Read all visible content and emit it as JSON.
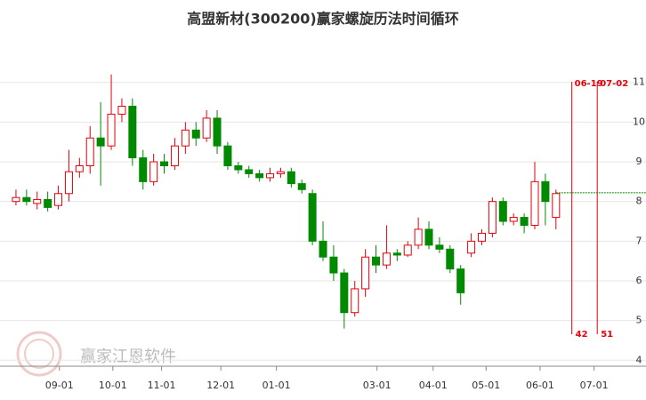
{
  "chart_data": {
    "type": "candlestick",
    "title": "高盟新材(300200)赢家螺旋历法时间循环",
    "watermark": "赢家江恩软件",
    "x": [
      0,
      2,
      4,
      6,
      8,
      10,
      12,
      14,
      16,
      18,
      20,
      22,
      24,
      26,
      28,
      30,
      32,
      34,
      36,
      38,
      40,
      42,
      44,
      46,
      48,
      50,
      52,
      54,
      56,
      58,
      60,
      62,
      64,
      66,
      68,
      70,
      72,
      74,
      76,
      78,
      80,
      82,
      84,
      86,
      88,
      90,
      92,
      94,
      96,
      98,
      100,
      102
    ],
    "open": [
      8.0,
      8.1,
      7.95,
      8.05,
      7.9,
      8.2,
      8.75,
      8.9,
      9.6,
      9.4,
      10.2,
      10.4,
      9.1,
      8.5,
      9.0,
      8.9,
      9.4,
      9.8,
      9.6,
      10.1,
      9.4,
      8.9,
      8.8,
      8.7,
      8.6,
      8.7,
      8.75,
      8.45,
      8.2,
      7.0,
      6.6,
      6.2,
      5.2,
      5.8,
      6.6,
      6.4,
      6.7,
      6.65,
      6.9,
      7.3,
      6.9,
      6.8,
      6.3,
      6.7,
      7.0,
      7.2,
      8.0,
      7.5,
      7.6,
      7.4,
      8.5,
      7.6
    ],
    "high": [
      8.3,
      8.3,
      8.25,
      8.25,
      8.4,
      9.3,
      9.1,
      9.9,
      10.5,
      11.2,
      10.6,
      10.6,
      9.3,
      9.2,
      9.2,
      9.6,
      10.0,
      10.0,
      10.3,
      10.3,
      9.5,
      9.0,
      8.9,
      8.8,
      8.85,
      8.85,
      8.85,
      8.55,
      8.3,
      7.5,
      6.9,
      6.3,
      6.0,
      6.8,
      6.9,
      7.4,
      6.8,
      7.0,
      7.6,
      7.5,
      7.1,
      6.9,
      6.4,
      7.2,
      7.3,
      8.1,
      8.1,
      7.7,
      7.7,
      9.0,
      8.7,
      8.3
    ],
    "low": [
      7.9,
      7.9,
      7.8,
      7.75,
      7.8,
      8.0,
      8.6,
      8.7,
      8.4,
      9.3,
      10.0,
      8.9,
      8.3,
      8.4,
      8.7,
      8.8,
      9.2,
      9.4,
      9.5,
      9.2,
      8.8,
      8.7,
      8.6,
      8.5,
      8.5,
      8.6,
      8.35,
      8.2,
      6.9,
      6.5,
      6.0,
      4.8,
      5.1,
      5.6,
      6.2,
      6.3,
      6.5,
      6.6,
      6.8,
      6.8,
      6.7,
      6.2,
      5.4,
      6.6,
      6.9,
      7.1,
      7.4,
      7.4,
      7.2,
      7.3,
      7.4,
      7.3
    ],
    "close": [
      8.1,
      8.0,
      8.05,
      7.85,
      8.2,
      8.75,
      8.9,
      9.6,
      9.4,
      10.2,
      10.4,
      9.1,
      8.5,
      9.0,
      8.9,
      9.4,
      9.8,
      9.6,
      10.1,
      9.4,
      8.9,
      8.8,
      8.7,
      8.6,
      8.7,
      8.75,
      8.45,
      8.3,
      7.0,
      6.6,
      6.2,
      5.2,
      5.8,
      6.6,
      6.4,
      6.7,
      6.65,
      6.9,
      7.3,
      6.9,
      6.8,
      6.3,
      5.7,
      7.0,
      7.2,
      8.0,
      7.5,
      7.6,
      7.4,
      8.5,
      8.0,
      8.2
    ],
    "up_color": "#e8000b",
    "down_color": "#008a00",
    "xlim": [
      -1,
      118
    ],
    "xticks": [
      {
        "value": 8.2,
        "label": "09-01"
      },
      {
        "value": 18.3,
        "label": "10-01"
      },
      {
        "value": 27.5,
        "label": "11-01"
      },
      {
        "value": 38.7,
        "label": "12-01"
      },
      {
        "value": 49.2,
        "label": "01-01"
      },
      {
        "value": 68.2,
        "label": "03-01"
      },
      {
        "value": 78.8,
        "label": "04-01"
      },
      {
        "value": 88.8,
        "label": "05-01"
      },
      {
        "value": 99,
        "label": "06-01"
      },
      {
        "value": 109.2,
        "label": "07-01"
      }
    ],
    "ylim": [
      3.85,
      11.8
    ],
    "yticks": [
      4,
      5,
      6,
      7,
      8,
      9,
      10,
      11
    ],
    "grid": true,
    "reference_line": {
      "value": 8.22,
      "color": "#008a00"
    },
    "cycle_lines": [
      {
        "x": 105,
        "label": "06-19",
        "count": 42
      },
      {
        "x": 109.8,
        "label": "07-02",
        "count": 51
      }
    ],
    "cycle_color": "#e8000b"
  }
}
